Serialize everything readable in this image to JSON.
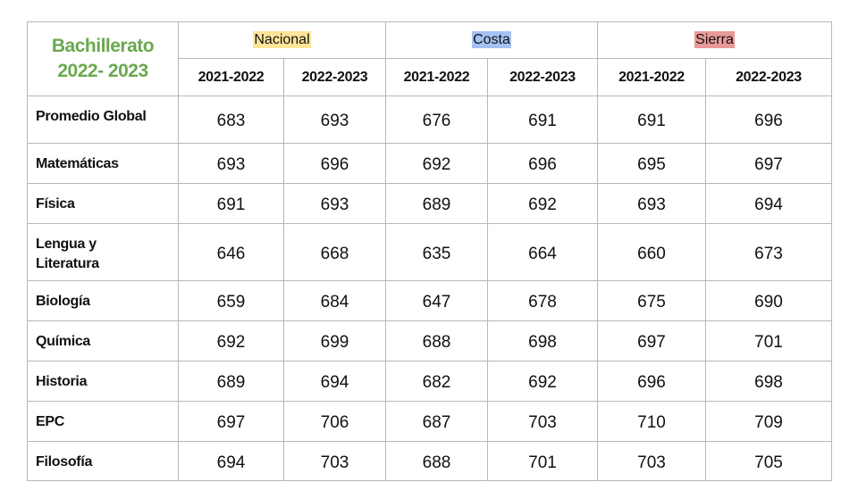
{
  "table": {
    "title": [
      "Bachillerato",
      "2022- 2023"
    ],
    "title_color": "#6aa84f",
    "groups": [
      {
        "name": "Nacional",
        "highlight": "#ffe599",
        "years": [
          "2021-2022",
          "2022-2023"
        ]
      },
      {
        "name": "Costa",
        "highlight": "#a4c2f4",
        "years": [
          "2021-2022",
          "2022-2023"
        ]
      },
      {
        "name": "Sierra",
        "highlight": "#ea9999",
        "years": [
          "2021-2022",
          "2022-2023"
        ]
      }
    ],
    "rows": [
      {
        "label": "Promedio Global",
        "values": [
          683,
          693,
          676,
          691,
          691,
          696
        ]
      },
      {
        "label": "Matemáticas",
        "values": [
          693,
          696,
          692,
          696,
          695,
          697
        ]
      },
      {
        "label": "Física",
        "values": [
          691,
          693,
          689,
          692,
          693,
          694
        ]
      },
      {
        "label": "Lengua y\nLiteratura",
        "values": [
          646,
          668,
          635,
          664,
          660,
          673
        ]
      },
      {
        "label": "Biología",
        "values": [
          659,
          684,
          647,
          678,
          675,
          690
        ]
      },
      {
        "label": "Química",
        "values": [
          692,
          699,
          688,
          698,
          697,
          701
        ]
      },
      {
        "label": "Historia",
        "values": [
          689,
          694,
          682,
          692,
          696,
          698
        ]
      },
      {
        "label": "EPC",
        "values": [
          697,
          706,
          687,
          703,
          710,
          709
        ]
      },
      {
        "label": "Filosofía",
        "values": [
          694,
          703,
          688,
          701,
          703,
          705
        ]
      }
    ]
  }
}
